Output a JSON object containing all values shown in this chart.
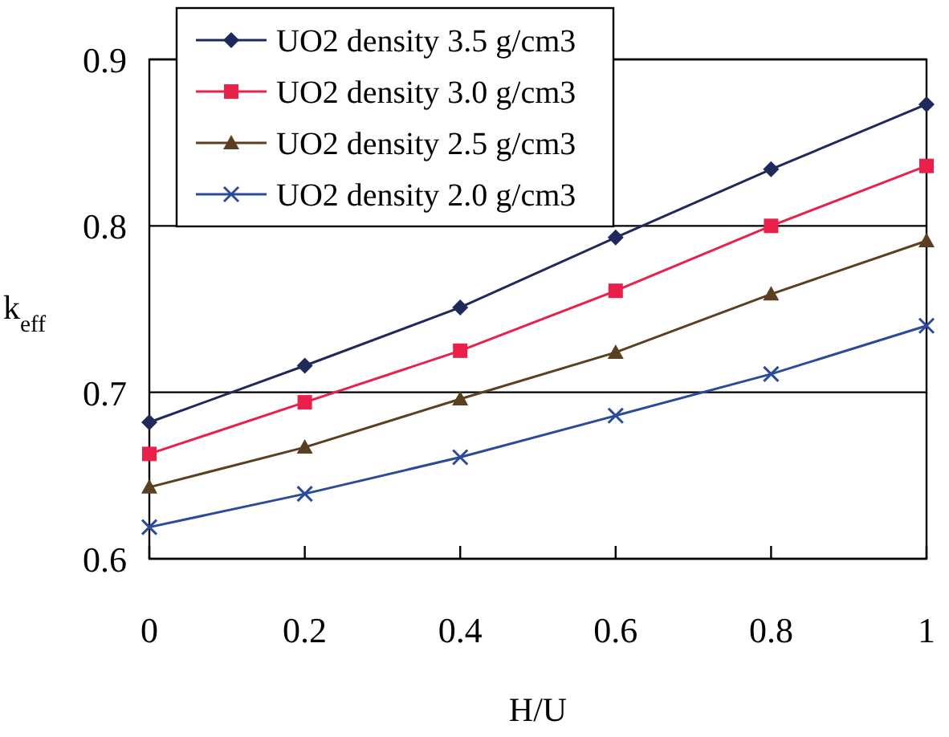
{
  "chart_data": {
    "type": "line",
    "xlabel": "H/U",
    "ylabel": "k$_{eff}$",
    "x": [
      0,
      0.2,
      0.4,
      0.6,
      0.8,
      1
    ],
    "xlim": [
      0,
      1
    ],
    "xticks": [
      0,
      0.2,
      0.4,
      0.6,
      0.8,
      1
    ],
    "ylim": [
      0.6,
      0.9
    ],
    "yticks": [
      0.6,
      0.7,
      0.8,
      0.9
    ],
    "grid": "y",
    "legend": "top left",
    "series": [
      {
        "name": "UO2 density 3.5 g/cm3",
        "color": "#1f2a5a",
        "marker": "diamond",
        "values": [
          0.682,
          0.716,
          0.751,
          0.793,
          0.834,
          0.873
        ]
      },
      {
        "name": "UO2 density 3.0 g/cm3",
        "color": "#e8204a",
        "marker": "square",
        "values": [
          0.663,
          0.694,
          0.725,
          0.761,
          0.8,
          0.836
        ]
      },
      {
        "name": "UO2 density 2.5 g/cm3",
        "color": "#5a4020",
        "marker": "triangle",
        "values": [
          0.643,
          0.667,
          0.696,
          0.724,
          0.759,
          0.791
        ]
      },
      {
        "name": "UO2 density 2.0 g/cm3",
        "color": "#2a4a9a",
        "marker": "cross",
        "values": [
          0.619,
          0.639,
          0.661,
          0.686,
          0.711,
          0.74
        ]
      }
    ]
  }
}
